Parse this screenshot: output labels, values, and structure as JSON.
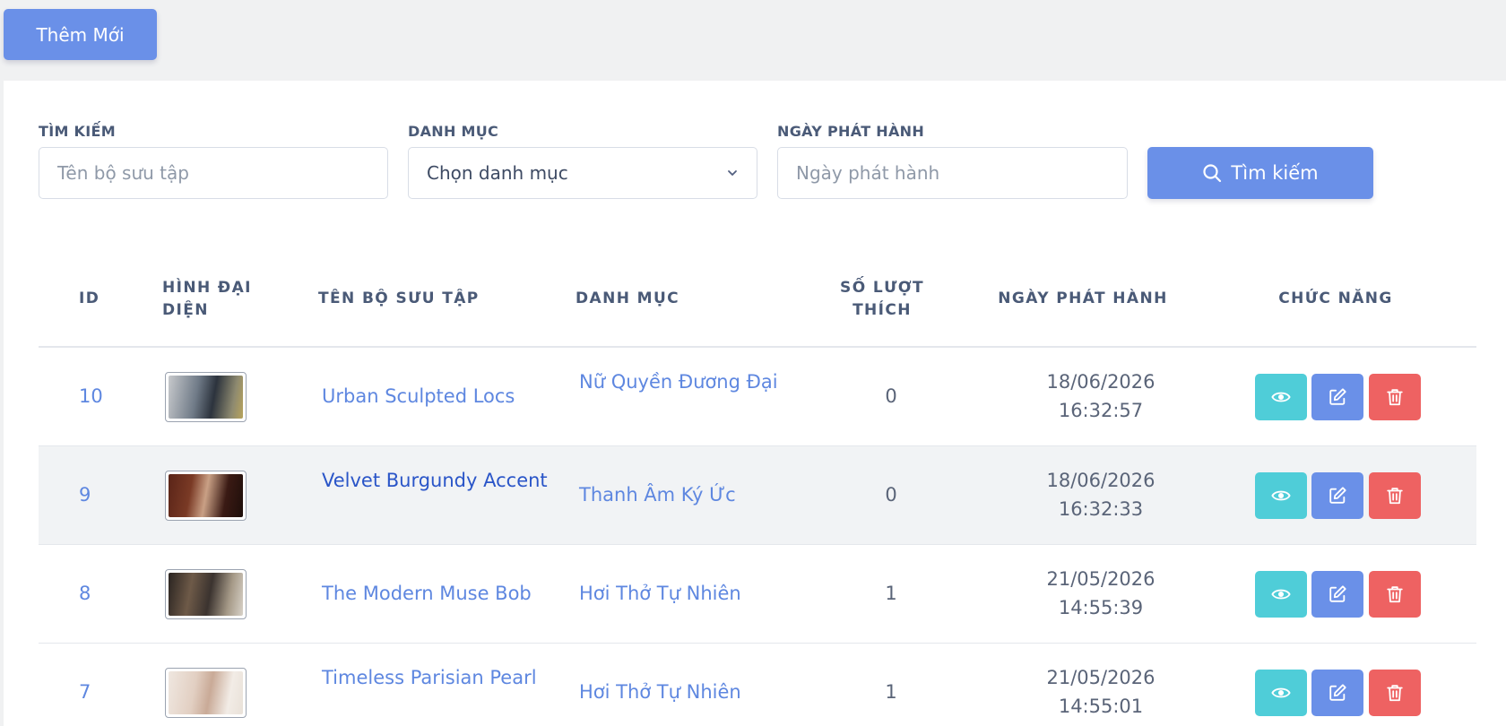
{
  "toolbar": {
    "add_label": "Thêm Mới"
  },
  "filters": {
    "search": {
      "label": "TÌM KIẾM",
      "placeholder": "Tên bộ sưu tập"
    },
    "category": {
      "label": "DANH MỤC",
      "value": "Chọn danh mục"
    },
    "release_date": {
      "label": "NGÀY PHÁT HÀNH",
      "placeholder": "Ngày phát hành"
    },
    "search_button": "Tìm kiếm"
  },
  "table": {
    "headers": {
      "id": "ID",
      "avatar_1": "HÌNH ĐẠI",
      "avatar_2": "DIỆN",
      "name": "TÊN BỘ SƯU TẬP",
      "category": "DANH MỤC",
      "likes_1": "SỐ LƯỢT",
      "likes_2": "THÍCH",
      "date": "NGÀY PHÁT HÀNH",
      "actions": "CHỨC NĂNG"
    },
    "rows": [
      {
        "id": "10",
        "name": "Urban Sculpted Locs",
        "category": "Nữ Quyền Đương Đại",
        "likes": "0",
        "date": "18/06/2026",
        "time": "16:32:57"
      },
      {
        "id": "9",
        "name": "Velvet Burgundy Accent",
        "category": "Thanh Âm Ký Ức",
        "likes": "0",
        "date": "18/06/2026",
        "time": "16:32:33"
      },
      {
        "id": "8",
        "name": "The Modern Muse Bob",
        "category": "Hơi Thở Tự Nhiên",
        "likes": "1",
        "date": "21/05/2026",
        "time": "14:55:39"
      },
      {
        "id": "7",
        "name": "Timeless Parisian Pearl",
        "category": "Hơi Thở Tự Nhiên",
        "likes": "1",
        "date": "21/05/2026",
        "time": "14:55:01"
      }
    ]
  },
  "icons": {
    "view": "eye-icon",
    "edit": "edit-icon",
    "delete": "trash-icon",
    "search": "search-icon",
    "dropdown": "chevron-down-icon"
  },
  "colors": {
    "primary": "#6a90e8",
    "info": "#4fcdd8",
    "danger": "#ee6262",
    "link": "#5e87e0"
  }
}
